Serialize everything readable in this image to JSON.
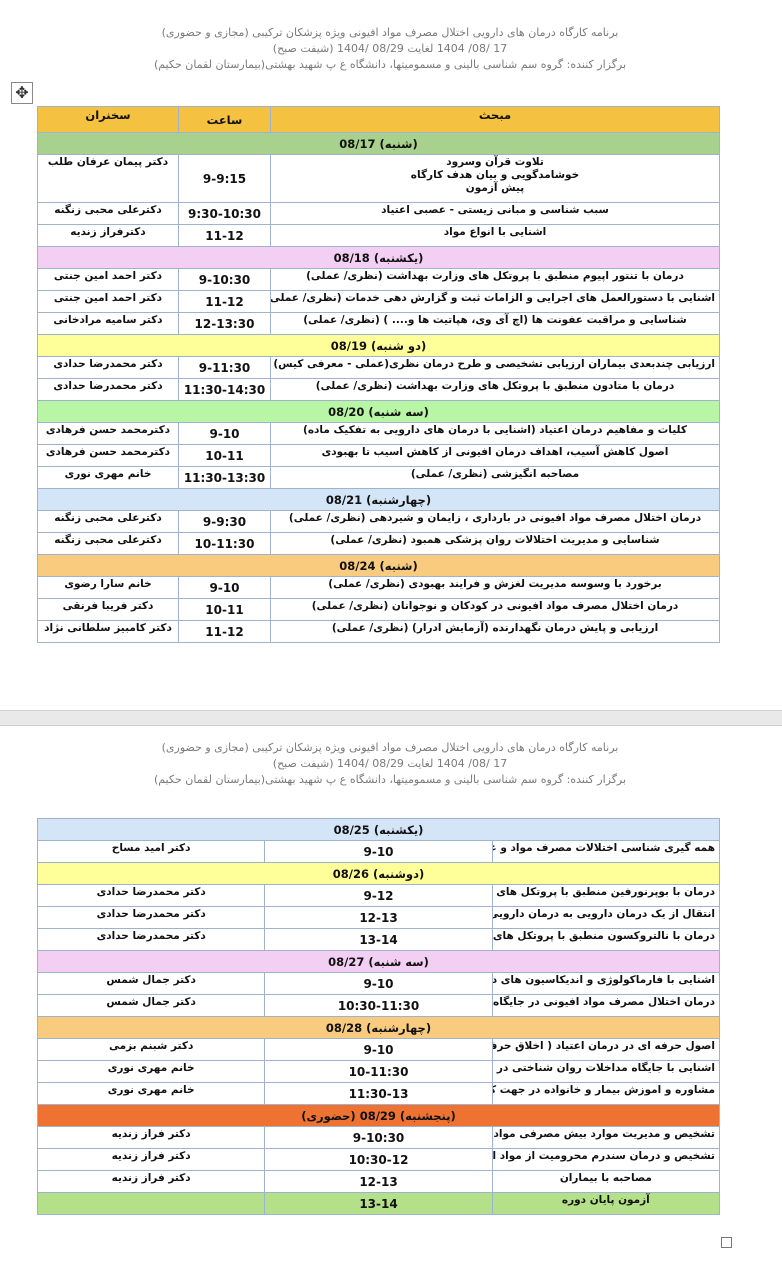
{
  "header": {
    "line1": "برنامه کارگاه درمان های دارویی اختلال مصرف مواد افیونی ویژه پزشکان ترکیبی (مجازی و حضوری)",
    "line2": "17 /08/ 1404 لغایت  08/29 /1404  (شیفت صبح)",
    "line3": "برگزار کننده: گروه سم شناسی بالینی و مسمومیتها، دانشگاه ع پ شهید بهشتی(بیمارستان لقمان حکیم)"
  },
  "columns": {
    "topic": "مبحث",
    "time": "ساعت",
    "speaker": "سخنران"
  },
  "colors": {
    "header": "#f4c141",
    "green": "#a9d18e",
    "pink": "#f3cff3",
    "yellow": "#ffff99",
    "lightgreen": "#b8f5a5",
    "lightblue": "#d5e5f8",
    "lightorange": "#f8cb7e",
    "orange": "#ee7332"
  },
  "page1": [
    {
      "day": "(شنبه) 08/17",
      "color": "#a9d18e",
      "rows": [
        {
          "topic": "تلاوت قرآن وسرود\nخوشامدگویی و بیان هدف کارگاه\nپیش آزمون",
          "time": "9-9:15",
          "speaker": "دکتر پیمان عرفان طلب"
        },
        {
          "topic": "سبب شناسی و مبانی زیستی - عصبی اعتیاد",
          "time": "9:30-10:30",
          "speaker": "دکترعلی محبی زنگنه"
        },
        {
          "topic": "اشنایی با انواع مواد",
          "time": "11-12",
          "speaker": "دکترفراز زندیه"
        }
      ]
    },
    {
      "day": "(یکشنبه) 08/18",
      "color": "#f3cff3",
      "rows": [
        {
          "topic": "درمان با تنتور اپیوم منطبق با پروتکل های وزارت بهداشت (نظری/ عملی)",
          "time": "9-10:30",
          "speaker": "دکتر احمد امین جنتی"
        },
        {
          "topic": "اشنایی با دستورالعمل های اجرایی و الزامات ثبت و گزارش دهی خدمات (نظری/ عملی)",
          "time": "11-12",
          "speaker": "دکتر احمد امین جنتی"
        },
        {
          "topic": "شناسایی و مراقبت عفونت ها (اچ آی وی، هپاتیت ها و.... ) (نظری/ عملی)",
          "time": "12-13:30",
          "speaker": "دکتر سامیه مرادخانی"
        }
      ]
    },
    {
      "day": "(دو شنبه) 08/19",
      "color": "#ffff99",
      "rows": [
        {
          "topic": "ارزیابی چندبعدی بیماران ارزیابی تشخیصی و طرح درمان نظری(عملی - معرفی کیس)",
          "time": "9-11:30",
          "speaker": "دکتر محمدرضا حدادی"
        },
        {
          "topic": "درمان با متادون منطبق با پروتکل های وزارت بهداشت (نظری/ عملی)",
          "time": "11:30-14:30",
          "speaker": "دکتر محمدرضا حدادی"
        }
      ]
    },
    {
      "day": "(سه شنبه) 08/20",
      "color": "#b8f5a5",
      "rows": [
        {
          "topic": "کلیات و مفاهیم درمان اعتیاد (اشنایی با درمان های دارویی به تفکیک ماده)",
          "time": "9-10",
          "speaker": "دکترمحمد حسن فرهادی"
        },
        {
          "topic": "اصول کاهش آسیب، اهداف درمان افیونی از کاهش اسیب  تا بهبودی",
          "time": "10-11",
          "speaker": "دکترمحمد حسن فرهادی"
        },
        {
          "topic": "مصاحبه انگیزشی (نظری/ عملی)",
          "time": "11:30-13:30",
          "speaker": "خانم مهری نوری"
        }
      ]
    },
    {
      "day": "(چهارشنبه) 08/21",
      "color": "#d5e5f8",
      "rows": [
        {
          "topic": "درمان اختلال مصرف مواد افیونی در بارداری ، زایمان و شیردهی (نظری/ عملی)",
          "time": "9-9:30",
          "speaker": "دکترعلی محبی زنگنه"
        },
        {
          "topic": "شناسایی و مدیریت اختلالات روان پزشکی همبود (نظری/ عملی)",
          "time": "10-11:30",
          "speaker": "دکترعلی محبی زنگنه"
        }
      ]
    },
    {
      "day": "(شنبه) 08/24",
      "color": "#f8cb7e",
      "rows": [
        {
          "topic": "برخورد با وسوسه مدیریت لغزش و فرایند بهبودی (نظری/ عملی)",
          "time": "9-10",
          "speaker": "خانم سارا رضوی"
        },
        {
          "topic": "درمان اختلال مصرف مواد افیونی در کودکان و نوجوانان (نظری/ عملی)",
          "time": "10-11",
          "speaker": "دکتر فریبا فرنقی"
        },
        {
          "topic": "ارزیابی و پایش درمان نگهدارنده (آزمایش ادرار) (نظری/ عملی)",
          "time": "11-12",
          "speaker": "دکتر کامبیز سلطانی نژاد"
        }
      ]
    }
  ],
  "page2": [
    {
      "day": "(یکشنبه) 08/25",
      "color": "#d5e5f8",
      "rows": [
        {
          "topic": "همه گیری شناسی اختلالات مصرف مواد و عوارض مرتبط با آن",
          "time": "9-10",
          "speaker": "دکتر امید مساح"
        }
      ]
    },
    {
      "day": "(دوشنبه) 08/26",
      "color": "#ffff99",
      "rows": [
        {
          "topic": "درمان با بوپرنورفین منطبق با پروتکل های وزارت بهداشت (نظری/ عملی)",
          "time": "9-12",
          "speaker": "دکتر محمدرضا حدادی"
        },
        {
          "topic": "انتقال از یک درمان دارویی به درمان دارویی دیگر (نظری/ عملی)",
          "time": "12-13",
          "speaker": "دکتر محمدرضا حدادی"
        },
        {
          "topic": "درمان با نالتروکسون منطبق با پروتکل های وزارت بهداشت (نظری/ عملی)",
          "time": "13-14",
          "speaker": "دکتر محمدرضا حدادی"
        }
      ]
    },
    {
      "day": "(سه شنبه) 08/27",
      "color": "#f3cff3",
      "rows": [
        {
          "topic": "اشنایی با فارماکولوژی و اندیکاسیون های درمان با داروهای آگونیست (نظری/ عملی)",
          "time": "9-10",
          "speaker": "دکتر جمال شمس"
        },
        {
          "topic": "درمان اختلال مصرف مواد افیونی در جایگاه های تادیبی (نظری/ عملی)",
          "time": "10:30-11:30",
          "speaker": "دکتر جمال شمس"
        }
      ]
    },
    {
      "day": "(چهارشنبه) 08/28",
      "color": "#f8cb7e",
      "rows": [
        {
          "topic": "اصول حرفه ای در درمان اعتیاد ( اخلاق حرفه ای، اخذ رضایت آگاهانه و جنبه های قانونی)",
          "time": "9-10",
          "speaker": "دکتر شبنم بزمی"
        },
        {
          "topic": "اشنایی با جایگاه مداخلات روان شناختی در درمان اختلال مصرف مواد افیونی",
          "time": "10-11:30",
          "speaker": "خانم مهری نوری"
        },
        {
          "topic": "مشاوره و اموزش بیمار و خانواده در جهت کمک به ترغیب بیمار به مراجعه (نظری/ عملی)",
          "time": "11:30-13",
          "speaker": "خانم مهری نوری"
        }
      ]
    },
    {
      "day": "(پنجشنبه) 08/29 (حضوری)",
      "color": "#ee7332",
      "rows": [
        {
          "topic": "تشخیص و مدیریت موارد بیش مصرفی مواد (عملی)",
          "time": "9-10:30",
          "speaker": "دکتر فراز زندیه"
        },
        {
          "topic": "تشخیص و درمان سندرم محرومیت از مواد افیونی (عملی)",
          "time": "10:30-12",
          "speaker": "دکتر فراز زندیه"
        },
        {
          "topic": "مصاحبه با بیماران",
          "time": "12-13",
          "speaker": "دکتر فراز زندیه"
        },
        {
          "topic": "آزمون پایان دوره",
          "time": "13-14",
          "speaker": "",
          "color": "#b5e08a"
        }
      ]
    }
  ]
}
